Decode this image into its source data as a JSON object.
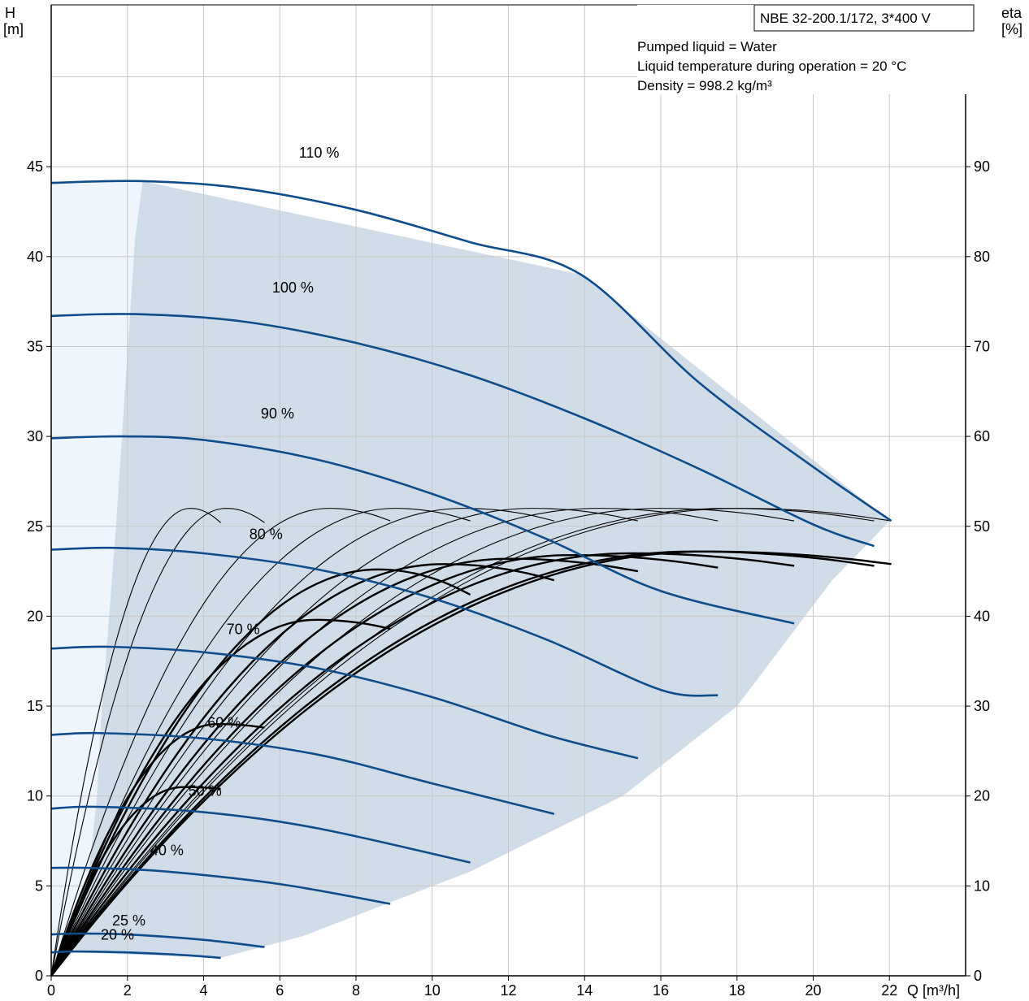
{
  "chart_data": {
    "type": "line",
    "title": "NBE 32-200.1/172, 3*400 V",
    "info_lines": [
      "Pumped liquid = Water",
      "Liquid temperature during operation = 20 °C",
      "Density = 998.2 kg/m³"
    ],
    "y_left_label": [
      "H",
      "[m]"
    ],
    "y_right_label": [
      "eta",
      "[%]"
    ],
    "x_label": "Q [m³/h]",
    "xlim": [
      0,
      24
    ],
    "ylim_left": [
      0,
      54
    ],
    "ylim_right": [
      0,
      108
    ],
    "x_ticks": [
      "0",
      "2",
      "4",
      "6",
      "8",
      "10",
      "12",
      "14",
      "16",
      "18",
      "20",
      "22"
    ],
    "y_left_ticks": [
      "0",
      "5",
      "10",
      "15",
      "20",
      "25",
      "30",
      "35",
      "40",
      "45"
    ],
    "y_right_ticks": [
      "0",
      "10",
      "20",
      "30",
      "40",
      "50",
      "60",
      "70",
      "80",
      "90"
    ],
    "grid": true,
    "colors": {
      "head_curve": "#0e4d8c",
      "eff_curve": "#000000",
      "operating_area": "#d0dde9",
      "low_flow_area": "#eef5fc",
      "grid": "#c8c8c8"
    },
    "operating_area": [
      [
        2.4,
        44.2
      ],
      [
        2.2,
        41
      ],
      [
        1.7,
        25
      ],
      [
        1.3,
        14
      ],
      [
        1.2,
        10
      ],
      [
        1.0,
        6
      ],
      [
        0.7,
        2.3
      ],
      [
        0.6,
        1.3
      ],
      [
        4.45,
        1.0
      ],
      [
        6.6,
        2.2
      ],
      [
        11,
        5.8
      ],
      [
        15,
        10
      ],
      [
        18,
        15
      ],
      [
        20.5,
        22
      ],
      [
        21.6,
        24.4
      ],
      [
        22.0,
        25.3
      ],
      [
        13.9,
        39.0
      ]
    ],
    "low_flow_area": [
      [
        0,
        44.2
      ],
      [
        2.4,
        44.2
      ],
      [
        2.2,
        41
      ],
      [
        1.7,
        25
      ],
      [
        1.3,
        14
      ],
      [
        1.2,
        10
      ],
      [
        1.0,
        6
      ],
      [
        0.7,
        2.3
      ],
      [
        0.6,
        1.3
      ],
      [
        0,
        0
      ]
    ],
    "head_curves": [
      {
        "name": "110 %",
        "label_at": [
          6.5,
          45.5
        ],
        "points": [
          [
            0,
            44.1
          ],
          [
            2.4,
            44.2
          ],
          [
            5,
            43.8
          ],
          [
            8,
            42.6
          ],
          [
            11,
            40.8
          ],
          [
            13.9,
            39.0
          ],
          [
            17,
            33
          ],
          [
            20,
            28.3
          ],
          [
            22.05,
            25.3
          ]
        ]
      },
      {
        "name": "100 %",
        "label_at": [
          5.8,
          38.0
        ],
        "points": [
          [
            0,
            36.7
          ],
          [
            2.2,
            36.8
          ],
          [
            5,
            36.4
          ],
          [
            8,
            35.2
          ],
          [
            11,
            33.4
          ],
          [
            14,
            31.0
          ],
          [
            17,
            28.2
          ],
          [
            20,
            25.1
          ],
          [
            21.6,
            23.9
          ]
        ]
      },
      {
        "name": "90 %",
        "label_at": [
          5.5,
          31.0
        ],
        "points": [
          [
            0,
            29.9
          ],
          [
            1.9,
            30.0
          ],
          [
            4,
            29.8
          ],
          [
            7,
            28.7
          ],
          [
            10,
            26.8
          ],
          [
            13,
            24.3
          ],
          [
            16,
            21.4
          ],
          [
            19.5,
            19.6
          ]
        ]
      },
      {
        "name": "80 %",
        "label_at": [
          5.2,
          24.3
        ],
        "points": [
          [
            0,
            23.7
          ],
          [
            1.7,
            23.8
          ],
          [
            4,
            23.5
          ],
          [
            7,
            22.6
          ],
          [
            10,
            21.0
          ],
          [
            13,
            18.7
          ],
          [
            16,
            15.9
          ],
          [
            17.5,
            15.6
          ]
        ]
      },
      {
        "name": "70 %",
        "label_at": [
          4.6,
          19.0
        ],
        "points": [
          [
            0,
            18.2
          ],
          [
            1.5,
            18.3
          ],
          [
            4,
            18.0
          ],
          [
            7,
            17.1
          ],
          [
            10,
            15.5
          ],
          [
            13,
            13.4
          ],
          [
            15.4,
            12.1
          ]
        ]
      },
      {
        "name": "60 %",
        "label_at": [
          4.1,
          13.8
        ],
        "points": [
          [
            0,
            13.4
          ],
          [
            1.3,
            13.5
          ],
          [
            4,
            13.2
          ],
          [
            7,
            12.3
          ],
          [
            10,
            10.7
          ],
          [
            13.2,
            9.0
          ]
        ]
      },
      {
        "name": "50 %",
        "label_at": [
          3.6,
          10.0
        ],
        "points": [
          [
            0,
            9.3
          ],
          [
            1.2,
            9.4
          ],
          [
            4,
            9.1
          ],
          [
            7,
            8.2
          ],
          [
            11,
            6.3
          ]
        ]
      },
      {
        "name": "40 %",
        "label_at": [
          2.6,
          6.7
        ],
        "points": [
          [
            0,
            6.0
          ],
          [
            1.0,
            6.0
          ],
          [
            3,
            5.8
          ],
          [
            6,
            5.1
          ],
          [
            8.9,
            4.0
          ]
        ]
      },
      {
        "name": "25 %",
        "label_at": [
          1.6,
          2.8
        ],
        "points": [
          [
            0,
            2.3
          ],
          [
            0.7,
            2.35
          ],
          [
            2,
            2.3
          ],
          [
            4,
            2.0
          ],
          [
            5.6,
            1.6
          ]
        ]
      },
      {
        "name": "20 %",
        "label_at": [
          1.3,
          2.0
        ],
        "points": [
          [
            0,
            1.3
          ],
          [
            0.6,
            1.35
          ],
          [
            2,
            1.3
          ],
          [
            3.5,
            1.15
          ],
          [
            4.45,
            1.0
          ]
        ]
      }
    ],
    "eff_thin_ends": [
      [
        4.45,
        25.2
      ],
      [
        5.6,
        25.2
      ],
      [
        8.9,
        25.3
      ],
      [
        11,
        25.3
      ],
      [
        13.2,
        25.3
      ],
      [
        15.4,
        25.3
      ],
      [
        17.5,
        25.3
      ],
      [
        19.5,
        25.3
      ],
      [
        21.6,
        25.3
      ],
      [
        22.05,
        25.3
      ]
    ],
    "eff_thick_curves": [
      {
        "start": [
          0,
          0
        ],
        "peak_h": 10.5,
        "end": [
          4.45,
          10.4
        ]
      },
      {
        "start": [
          0,
          0
        ],
        "peak_h": 14.0,
        "end": [
          5.6,
          13.8
        ]
      },
      {
        "start": [
          0,
          0
        ],
        "peak_h": 19.8,
        "end": [
          8.9,
          19.3
        ]
      },
      {
        "start": [
          0,
          0
        ],
        "peak_h": 22.6,
        "end": [
          11,
          21.2
        ]
      },
      {
        "start": [
          0,
          0
        ],
        "peak_h": 22.9,
        "end": [
          13.2,
          22.0
        ]
      },
      {
        "start": [
          0,
          0
        ],
        "peak_h": 23.2,
        "end": [
          15.4,
          22.5
        ]
      },
      {
        "start": [
          0,
          0
        ],
        "peak_h": 23.4,
        "end": [
          17.5,
          22.7
        ]
      },
      {
        "start": [
          0,
          0
        ],
        "peak_h": 23.5,
        "end": [
          19.5,
          22.8
        ]
      },
      {
        "start": [
          0,
          0
        ],
        "peak_h": 23.6,
        "end": [
          21.6,
          22.8
        ]
      },
      {
        "start": [
          0,
          0
        ],
        "peak_h": 23.6,
        "end": [
          22.05,
          22.9
        ]
      }
    ]
  }
}
